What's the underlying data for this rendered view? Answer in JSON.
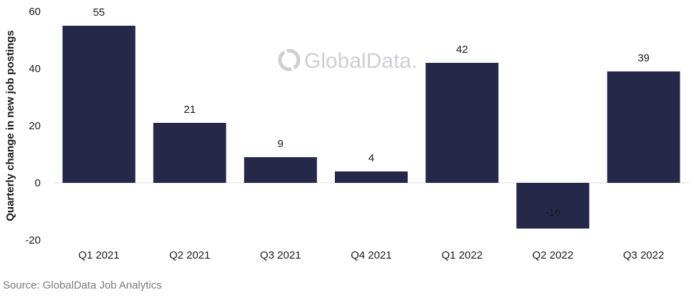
{
  "chart_data": {
    "type": "bar",
    "categories": [
      "Q1 2021",
      "Q2 2021",
      "Q3 2021",
      "Q4 2021",
      "Q1 2022",
      "Q2 2022",
      "Q3 2022"
    ],
    "values": [
      55,
      21,
      9,
      4,
      42,
      -16,
      39
    ],
    "data_labels": [
      "55",
      "21",
      "9",
      "4",
      "42",
      "-16",
      "39"
    ],
    "ylabel": "Quarterly change in new job postings",
    "xlabel": "",
    "ylim": [
      -20,
      60
    ],
    "yticks": [
      -20,
      0,
      20,
      40,
      60
    ],
    "bar_color": "#26284a",
    "grid": false,
    "legend": "none"
  },
  "source": "Source: GlobalData Job Analytics",
  "watermark": "GlobalData."
}
